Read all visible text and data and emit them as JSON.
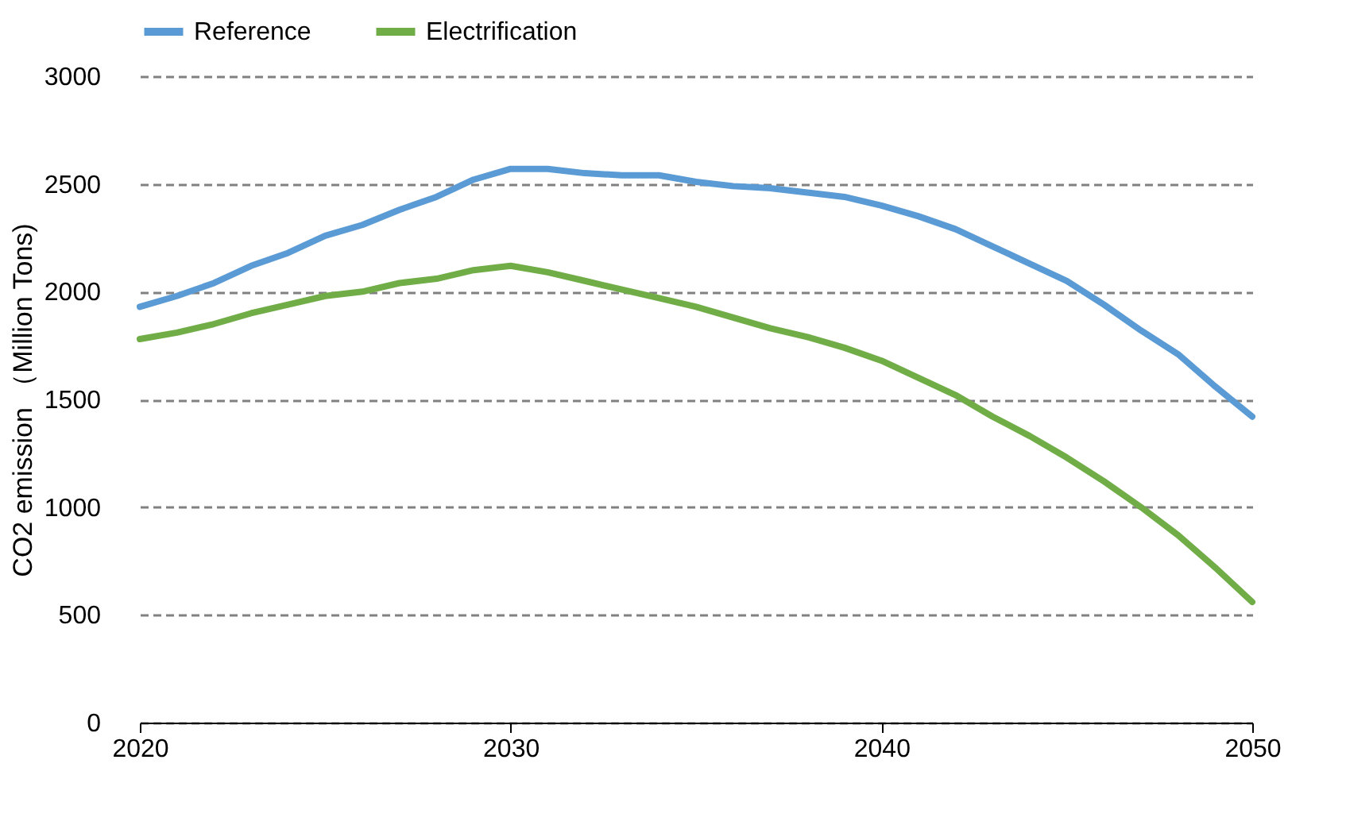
{
  "chart_data": {
    "type": "line",
    "ylabel": "CO2 emission （Million Tons)",
    "x": [
      2020,
      2021,
      2022,
      2023,
      2024,
      2025,
      2026,
      2027,
      2028,
      2029,
      2030,
      2031,
      2032,
      2033,
      2034,
      2035,
      2036,
      2037,
      2038,
      2039,
      2040,
      2041,
      2042,
      2043,
      2044,
      2045,
      2046,
      2047,
      2048,
      2049,
      2050
    ],
    "series": [
      {
        "name": "Reference",
        "color": "#5b9bd5",
        "values": [
          1930,
          1980,
          2040,
          2120,
          2180,
          2260,
          2310,
          2380,
          2440,
          2520,
          2570,
          2570,
          2550,
          2540,
          2540,
          2510,
          2490,
          2480,
          2460,
          2440,
          2400,
          2350,
          2290,
          2210,
          2130,
          2050,
          1940,
          1820,
          1710,
          1560,
          1420
        ]
      },
      {
        "name": "Electrification",
        "color": "#70ad47",
        "values": [
          1780,
          1810,
          1850,
          1900,
          1940,
          1980,
          2000,
          2040,
          2060,
          2100,
          2120,
          2090,
          2050,
          2010,
          1970,
          1930,
          1880,
          1830,
          1790,
          1740,
          1680,
          1600,
          1520,
          1420,
          1330,
          1230,
          1120,
          1000,
          870,
          720,
          560
        ]
      }
    ],
    "xlim": [
      2020,
      2050
    ],
    "xticks": [
      2020,
      2030,
      2040,
      2050
    ],
    "ylim": [
      0,
      3000
    ],
    "yticks": [
      0,
      500,
      1000,
      1500,
      2000,
      2500,
      3000
    ],
    "grid": "y",
    "legend": "top",
    "line_style": "solid",
    "marker": "none"
  }
}
